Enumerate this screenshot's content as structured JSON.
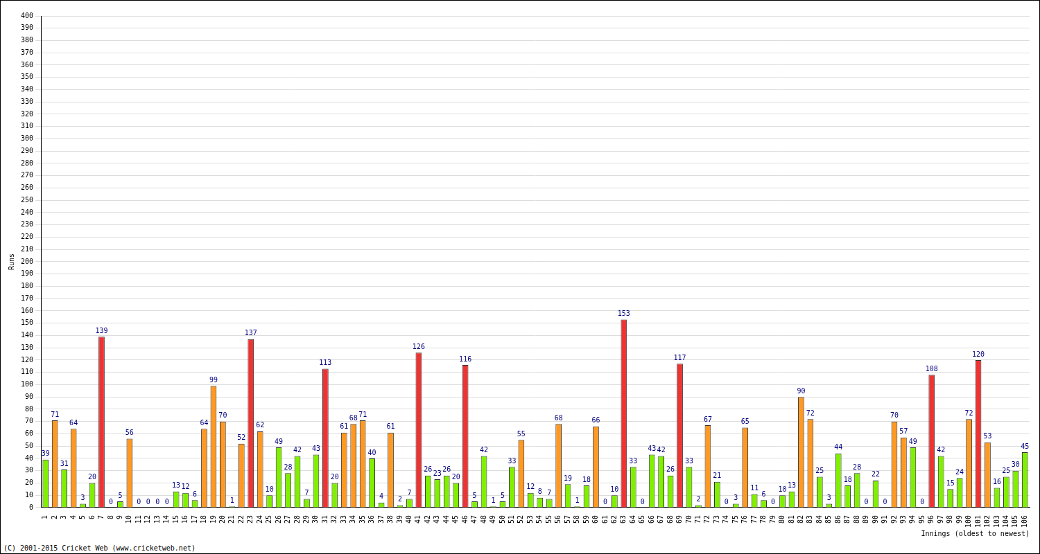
{
  "chart_data": {
    "type": "bar",
    "x_label": "Innings (oldest to newest)",
    "y_label": "Runs",
    "annotations": [
      "(C) 2001-2015 Cricket Web (www.cricketweb.net)"
    ],
    "categories": [
      "1",
      "2",
      "3",
      "4",
      "5",
      "6",
      "7",
      "8",
      "9",
      "10",
      "11",
      "12",
      "13",
      "14",
      "15",
      "16",
      "17",
      "18",
      "19",
      "20",
      "21",
      "22",
      "23",
      "24",
      "25",
      "26",
      "27",
      "28",
      "29",
      "30",
      "31",
      "32",
      "33",
      "34",
      "35",
      "36",
      "37",
      "38",
      "39",
      "40",
      "41",
      "42",
      "43",
      "44",
      "45",
      "46",
      "47",
      "48",
      "49",
      "50",
      "51",
      "52",
      "53",
      "54",
      "55",
      "56",
      "57",
      "58",
      "59",
      "60",
      "61",
      "62",
      "63",
      "64",
      "65",
      "66",
      "67",
      "68",
      "69",
      "70",
      "71",
      "72",
      "73",
      "74",
      "75",
      "76",
      "77",
      "78",
      "79",
      "80",
      "81",
      "82",
      "83",
      "84",
      "85",
      "86",
      "87",
      "88",
      "89",
      "90",
      "91",
      "92",
      "93",
      "94",
      "95",
      "96",
      "97",
      "98",
      "99",
      "100",
      "101",
      "102",
      "103",
      "104",
      "105",
      "106"
    ],
    "values": [
      39,
      71,
      31,
      64,
      3,
      20,
      139,
      0,
      5,
      56,
      0,
      0,
      0,
      0,
      13,
      12,
      6,
      64,
      99,
      70,
      1,
      52,
      137,
      62,
      10,
      49,
      28,
      42,
      7,
      43,
      113,
      20,
      61,
      68,
      71,
      40,
      4,
      61,
      2,
      7,
      126,
      26,
      23,
      26,
      20,
      116,
      5,
      42,
      1,
      5,
      33,
      55,
      12,
      8,
      7,
      68,
      19,
      1,
      18,
      66,
      0,
      10,
      153,
      33,
      0,
      43,
      42,
      26,
      117,
      33,
      2,
      67,
      21,
      0,
      3,
      65,
      11,
      6,
      0,
      10,
      13,
      90,
      72,
      25,
      3,
      44,
      18,
      28,
      0,
      22,
      0,
      70,
      57,
      49,
      0,
      108,
      42,
      15,
      24,
      72,
      120,
      53,
      16,
      25,
      30,
      45
    ],
    "colors": [
      "#80f000",
      "#ff9922",
      "#80f000",
      "#ff9922",
      "#80f000",
      "#80f000",
      "#ee3333",
      "#80f000",
      "#80f000",
      "#ff9922",
      "#80f000",
      "#80f000",
      "#80f000",
      "#80f000",
      "#80f000",
      "#80f000",
      "#80f000",
      "#ff9922",
      "#ff9922",
      "#ff9922",
      "#80f000",
      "#ff9922",
      "#ee3333",
      "#ff9922",
      "#80f000",
      "#80f000",
      "#80f000",
      "#80f000",
      "#80f000",
      "#80f000",
      "#ee3333",
      "#80f000",
      "#ff9922",
      "#ff9922",
      "#ff9922",
      "#80f000",
      "#80f000",
      "#ff9922",
      "#80f000",
      "#80f000",
      "#ee3333",
      "#80f000",
      "#80f000",
      "#80f000",
      "#80f000",
      "#ee3333",
      "#80f000",
      "#80f000",
      "#80f000",
      "#80f000",
      "#80f000",
      "#ff9922",
      "#80f000",
      "#80f000",
      "#80f000",
      "#ff9922",
      "#80f000",
      "#80f000",
      "#80f000",
      "#ff9922",
      "#80f000",
      "#80f000",
      "#ee3333",
      "#80f000",
      "#80f000",
      "#80f000",
      "#80f000",
      "#80f000",
      "#ee3333",
      "#80f000",
      "#80f000",
      "#ff9922",
      "#80f000",
      "#80f000",
      "#80f000",
      "#ff9922",
      "#80f000",
      "#80f000",
      "#80f000",
      "#80f000",
      "#80f000",
      "#ff9922",
      "#ff9922",
      "#80f000",
      "#80f000",
      "#80f000",
      "#80f000",
      "#80f000",
      "#80f000",
      "#80f000",
      "#80f000",
      "#ff9922",
      "#ff9922",
      "#80f000",
      "#80f000",
      "#ee3333",
      "#80f000",
      "#80f000",
      "#80f000",
      "#ff9922",
      "#ee3333",
      "#ff9922",
      "#80f000",
      "#80f000",
      "#80f000",
      "#80f000"
    ],
    "ylim": [
      0,
      400
    ],
    "yticks": [
      0,
      10,
      20,
      30,
      40,
      50,
      60,
      70,
      80,
      90,
      100,
      110,
      120,
      130,
      140,
      150,
      160,
      170,
      180,
      190,
      200,
      210,
      220,
      230,
      240,
      250,
      260,
      270,
      280,
      290,
      300,
      310,
      320,
      330,
      340,
      350,
      360,
      370,
      380,
      390,
      400
    ],
    "grid": true,
    "data_labels": true
  }
}
